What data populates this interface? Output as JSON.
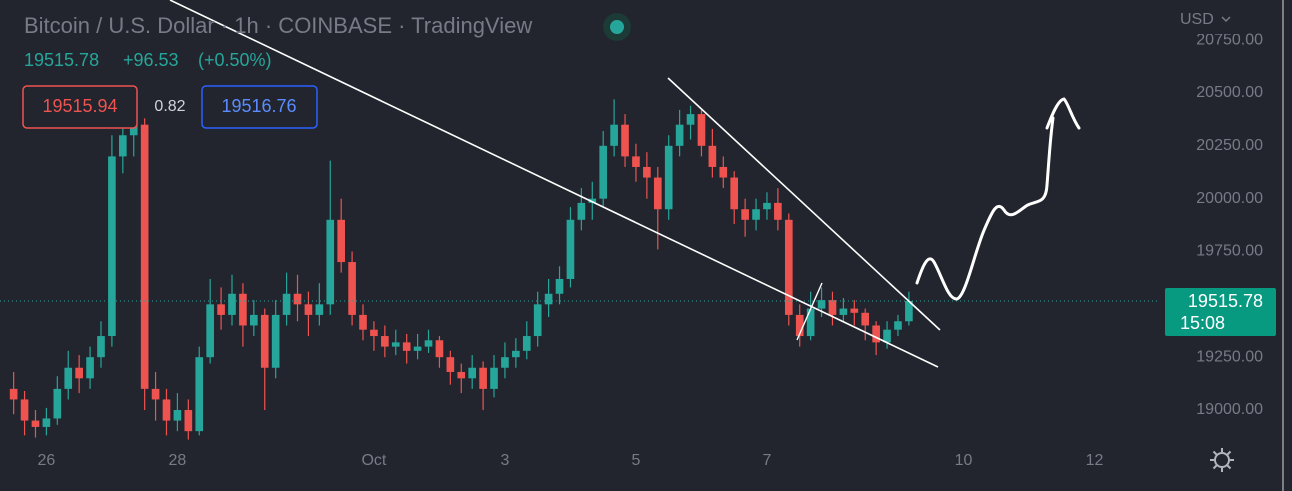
{
  "chart_data": {
    "type": "candlestick",
    "title": "Bitcoin / U.S. Dollar · 1h · COINBASE · TradingView",
    "change": "+96.53",
    "change_pct": "(+0.50%)",
    "bid": 19515.94,
    "spread": 0.82,
    "ask": 19516.76,
    "currency": "USD",
    "last_time": "15:08",
    "up_color": "#26a69a",
    "down_color": "#ef5350",
    "x": [
      -12,
      -8,
      -4,
      0,
      4,
      8,
      12,
      16,
      20,
      24,
      28,
      32,
      36,
      40,
      44,
      48,
      52,
      56,
      60,
      64,
      68,
      72,
      76,
      80,
      84,
      88,
      92,
      96,
      100,
      104,
      108,
      112,
      116,
      120,
      124,
      128,
      132,
      136,
      140,
      144,
      148,
      152,
      156,
      160,
      164,
      168,
      172,
      176,
      180,
      184,
      188,
      192,
      196,
      200,
      204,
      208,
      212,
      216,
      220,
      224,
      228,
      232,
      236,
      240,
      244,
      248,
      252,
      256,
      260,
      264,
      268,
      272,
      276,
      280,
      284,
      288,
      292,
      296,
      300,
      304,
      308,
      312,
      316
    ],
    "open": [
      19100,
      19050,
      18950,
      18920,
      18960,
      19100,
      19200,
      19150,
      19250,
      19350,
      20200,
      20300,
      20350,
      19100,
      19050,
      18950,
      19000,
      18900,
      19250,
      19500,
      19450,
      19550,
      19400,
      19450,
      19200,
      19450,
      19550,
      19500,
      19450,
      19500,
      19900,
      19700,
      19450,
      19380,
      19350,
      19300,
      19320,
      19280,
      19300,
      19330,
      19250,
      19180,
      19150,
      19200,
      19100,
      19200,
      19250,
      19280,
      19350,
      19500,
      19550,
      19620,
      19900,
      19980,
      20000,
      20250,
      20350,
      20200,
      20150,
      20100,
      19950,
      20250,
      20350,
      20400,
      20250,
      20150,
      20100,
      19950,
      19900,
      19950,
      19980,
      19900,
      19450,
      19350,
      19480,
      19520,
      19450,
      19480,
      19460,
      19400,
      19320,
      19380,
      19420
    ],
    "high": [
      19180,
      19090,
      19000,
      19010,
      19160,
      19280,
      19260,
      19300,
      19420,
      20300,
      20400,
      20420,
      20380,
      19180,
      19100,
      19080,
      19050,
      19300,
      19620,
      19580,
      19640,
      19600,
      19520,
      19480,
      19520,
      19650,
      19640,
      19560,
      19600,
      20180,
      20000,
      19750,
      19500,
      19420,
      19400,
      19380,
      19360,
      19360,
      19380,
      19350,
      19280,
      19220,
      19260,
      19230,
      19260,
      19320,
      19340,
      19420,
      19560,
      19620,
      19680,
      19960,
      20050,
      20080,
      20320,
      20470,
      20400,
      20260,
      20220,
      20150,
      20300,
      20420,
      20440,
      20420,
      20330,
      20200,
      20130,
      20000,
      20000,
      20030,
      20050,
      19930,
      19500,
      19560,
      19580,
      19560,
      19530,
      19520,
      19480,
      19420,
      19420,
      19450,
      19560
    ],
    "low": [
      18980,
      18880,
      18870,
      18880,
      18930,
      19050,
      19080,
      19100,
      19200,
      19300,
      20120,
      20200,
      19000,
      18950,
      18880,
      18900,
      18860,
      18880,
      19220,
      19380,
      19400,
      19300,
      19350,
      19000,
      19150,
      19400,
      19420,
      19350,
      19400,
      19450,
      19650,
      19400,
      19330,
      19280,
      19250,
      19260,
      19220,
      19240,
      19270,
      19200,
      19120,
      19080,
      19100,
      19000,
      19060,
      19150,
      19200,
      19240,
      19300,
      19440,
      19500,
      19580,
      19850,
      19900,
      19960,
      20200,
      20150,
      20080,
      20000,
      19760,
      19900,
      20200,
      20280,
      20200,
      20100,
      20050,
      19880,
      19820,
      19850,
      19900,
      19850,
      19400,
      19300,
      19330,
      19440,
      19400,
      19420,
      19400,
      19330,
      19260,
      19290,
      19350,
      19400
    ],
    "close": [
      19050,
      18950,
      18920,
      18960,
      19100,
      19200,
      19150,
      19250,
      19350,
      20200,
      20300,
      20350,
      19100,
      19050,
      18950,
      19000,
      18900,
      19250,
      19500,
      19450,
      19550,
      19400,
      19450,
      19200,
      19450,
      19550,
      19500,
      19450,
      19500,
      19900,
      19700,
      19450,
      19380,
      19350,
      19300,
      19320,
      19280,
      19300,
      19330,
      19250,
      19180,
      19150,
      19200,
      19100,
      19200,
      19250,
      19280,
      19350,
      19500,
      19550,
      19620,
      19900,
      19980,
      20000,
      20250,
      20350,
      20200,
      20150,
      20100,
      19950,
      20250,
      20350,
      20400,
      20250,
      20150,
      20100,
      19950,
      19900,
      19950,
      19980,
      19900,
      19450,
      19350,
      19480,
      19520,
      19450,
      19480,
      19460,
      19400,
      19320,
      19380,
      19420,
      19515.78
    ],
    "xlim": [
      -17,
      408
    ],
    "xticks": [
      {
        "value": 0,
        "label": "26"
      },
      {
        "value": 48,
        "label": "28"
      },
      {
        "value": 120,
        "label": "Oct"
      },
      {
        "value": 168,
        "label": "3"
      },
      {
        "value": 216,
        "label": "5"
      },
      {
        "value": 264,
        "label": "7"
      },
      {
        "value": 336,
        "label": "10"
      },
      {
        "value": 384,
        "label": "12"
      }
    ],
    "ylim": [
      18825,
      20940
    ],
    "yticks": [
      {
        "value": 19000,
        "label": "19000.00"
      },
      {
        "value": 19250,
        "label": "19250.00"
      },
      {
        "value": 19500,
        "label": "19500.00"
      },
      {
        "value": 19750,
        "label": "19750.00"
      },
      {
        "value": 20000,
        "label": "20000.00"
      },
      {
        "value": 20250,
        "label": "20250.00"
      },
      {
        "value": 20500,
        "label": "20500.00"
      },
      {
        "value": 20750,
        "label": "20750.00"
      }
    ]
  }
}
